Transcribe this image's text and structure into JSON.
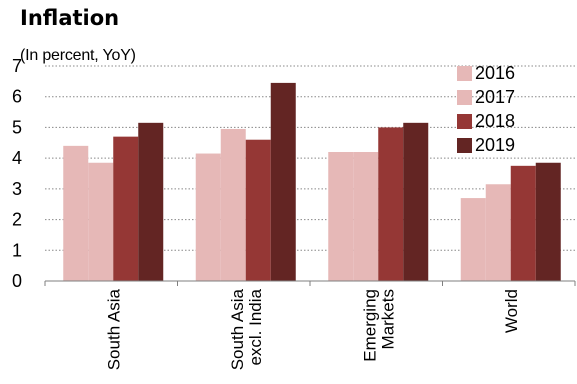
{
  "chart_data": {
    "type": "bar",
    "title": "Inflation",
    "subtitle": "(In percent, YoY)",
    "categories": [
      "South Asia",
      "South Asia excl. India",
      "Emerging Markets",
      "World"
    ],
    "category_lines": [
      [
        "South Asia"
      ],
      [
        "South Asia",
        "excl. India"
      ],
      [
        "Emerging",
        "Markets"
      ],
      [
        "World"
      ]
    ],
    "series": [
      {
        "name": "2016",
        "color": "#e6b8b7",
        "values": [
          4.4,
          4.15,
          4.2,
          2.7
        ]
      },
      {
        "name": "2017",
        "color": "#e6b8b7",
        "values": [
          3.85,
          4.95,
          4.2,
          3.15
        ]
      },
      {
        "name": "2018",
        "color": "#953735",
        "values": [
          4.7,
          4.6,
          5.0,
          3.75
        ]
      },
      {
        "name": "2019",
        "color": "#632523",
        "values": [
          5.15,
          6.45,
          5.15,
          3.85
        ]
      }
    ],
    "ylim": [
      0,
      7
    ],
    "yticks": [
      0,
      1,
      2,
      3,
      4,
      5,
      6,
      7
    ],
    "grid": true,
    "legend_position": "top-right"
  }
}
